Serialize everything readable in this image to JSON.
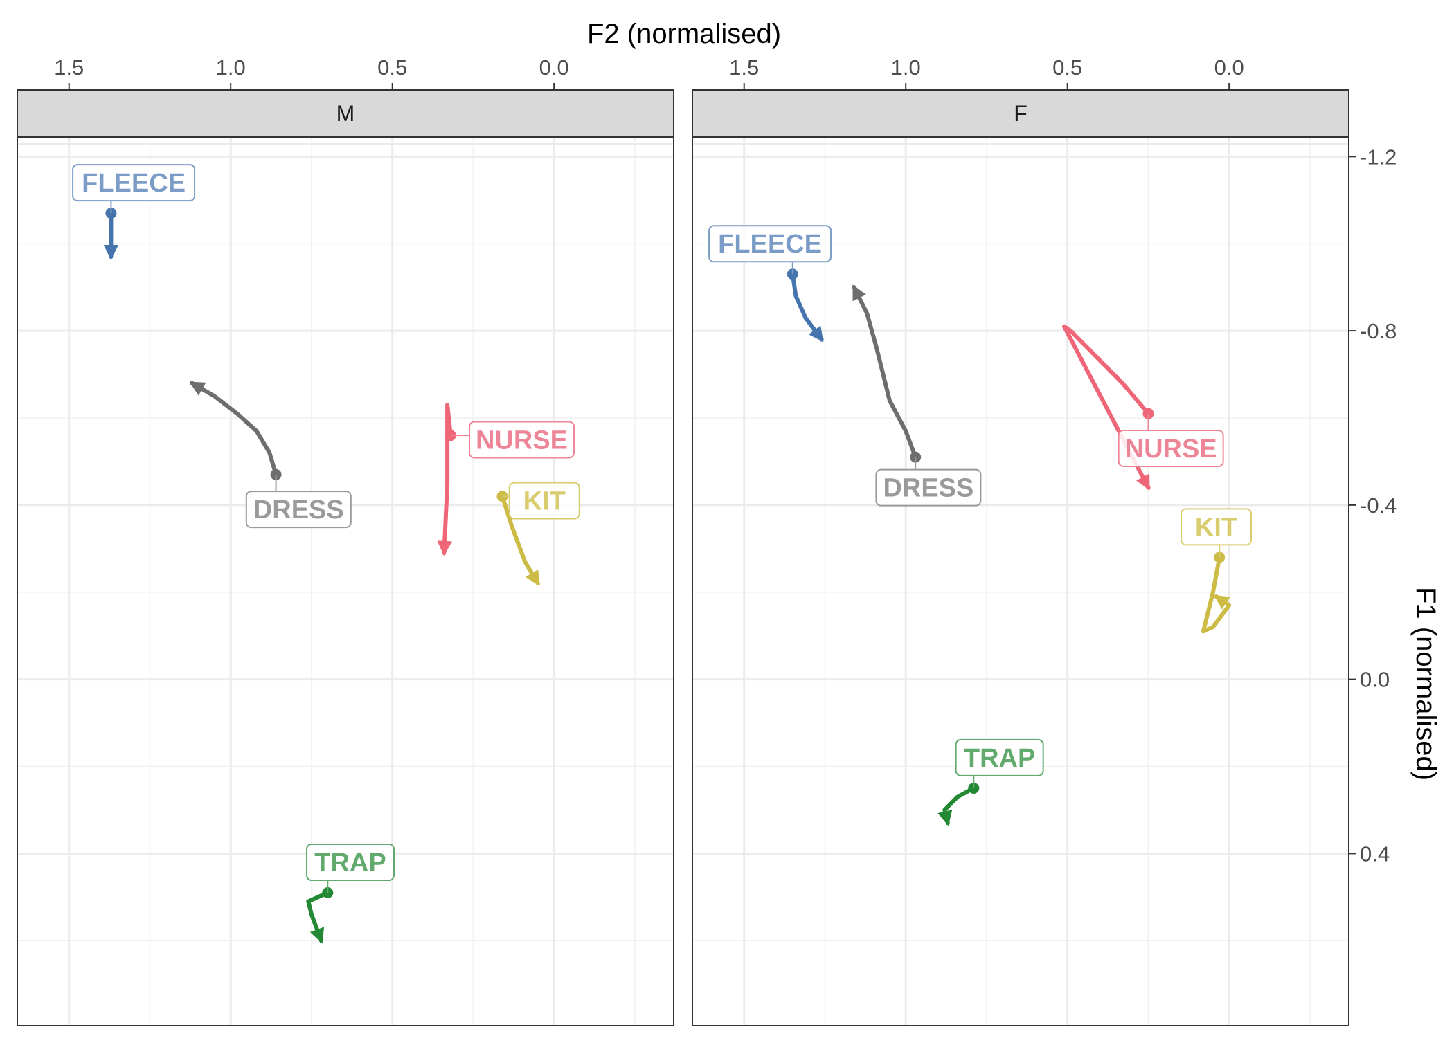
{
  "chart_data": {
    "type": "line",
    "xlabel": "F2 (normalised)",
    "ylabel": "F1 (normalised)",
    "x_axis": {
      "position": "top",
      "reversed": true,
      "lim": [
        1.66,
        -0.37
      ],
      "ticks": [
        1.5,
        1.0,
        0.5,
        0.0
      ],
      "tick_labels": [
        "1.5",
        "1.0",
        "0.5",
        "0.0"
      ]
    },
    "y_axis": {
      "position": "right",
      "reversed": true,
      "lim": [
        -1.245,
        0.795
      ],
      "ticks": [
        -1.2,
        -0.8,
        -0.4,
        0.0,
        0.4
      ],
      "tick_labels": [
        "-1.2",
        "-0.8",
        "-0.4",
        "0.0",
        "0.4"
      ]
    },
    "grid": true,
    "colors": {
      "FLEECE": "#4575ac",
      "DRESS": "#6e6e6e",
      "NURSE": "#ee6677",
      "KIT": "#ccbb44",
      "TRAP": "#228833"
    },
    "label_colors": {
      "FLEECE": "#7a9cc6",
      "DRESS": "#9a9a9a",
      "NURSE": "#ee8597",
      "KIT": "#d9cc6e",
      "TRAP": "#62a96e"
    },
    "panels": [
      {
        "facet": "M",
        "series": [
          {
            "name": "FLEECE",
            "points": [
              [
                1.37,
                -1.07
              ],
              [
                1.37,
                -0.97
              ]
            ],
            "label_at": [
              1.3,
              -1.14
            ]
          },
          {
            "name": "DRESS",
            "points": [
              [
                0.86,
                -0.47
              ],
              [
                0.88,
                -0.52
              ],
              [
                0.92,
                -0.57
              ],
              [
                0.98,
                -0.61
              ],
              [
                1.05,
                -0.65
              ],
              [
                1.12,
                -0.68
              ]
            ],
            "label_at": [
              0.79,
              -0.39
            ]
          },
          {
            "name": "NURSE",
            "points": [
              [
                0.32,
                -0.56
              ],
              [
                0.33,
                -0.63
              ],
              [
                0.33,
                -0.45
              ],
              [
                0.34,
                -0.29
              ]
            ],
            "label_at": [
              0.1,
              -0.55
            ]
          },
          {
            "name": "KIT",
            "points": [
              [
                0.16,
                -0.42
              ],
              [
                0.13,
                -0.35
              ],
              [
                0.09,
                -0.27
              ],
              [
                0.05,
                -0.22
              ]
            ],
            "label_at": [
              0.03,
              -0.41
            ]
          },
          {
            "name": "TRAP",
            "points": [
              [
                0.7,
                0.49
              ],
              [
                0.76,
                0.51
              ],
              [
                0.75,
                0.54
              ],
              [
                0.72,
                0.6
              ]
            ],
            "label_at": [
              0.63,
              0.42
            ]
          }
        ]
      },
      {
        "facet": "F",
        "series": [
          {
            "name": "FLEECE",
            "points": [
              [
                1.35,
                -0.93
              ],
              [
                1.34,
                -0.88
              ],
              [
                1.31,
                -0.83
              ],
              [
                1.26,
                -0.78
              ]
            ],
            "label_at": [
              1.42,
              -1.0
            ]
          },
          {
            "name": "DRESS",
            "points": [
              [
                0.97,
                -0.51
              ],
              [
                1.0,
                -0.57
              ],
              [
                1.05,
                -0.64
              ],
              [
                1.09,
                -0.76
              ],
              [
                1.12,
                -0.84
              ],
              [
                1.16,
                -0.9
              ]
            ],
            "label_at": [
              0.93,
              -0.44
            ]
          },
          {
            "name": "NURSE",
            "points": [
              [
                0.25,
                -0.61
              ],
              [
                0.33,
                -0.68
              ],
              [
                0.49,
                -0.8
              ],
              [
                0.51,
                -0.81
              ],
              [
                0.25,
                -0.44
              ]
            ],
            "label_at": [
              0.18,
              -0.53
            ]
          },
          {
            "name": "KIT",
            "points": [
              [
                0.03,
                -0.28
              ],
              [
                0.05,
                -0.2
              ],
              [
                0.08,
                -0.11
              ],
              [
                0.05,
                -0.12
              ],
              [
                0.0,
                -0.17
              ],
              [
                0.04,
                -0.19
              ]
            ],
            "label_at": [
              0.04,
              -0.35
            ]
          },
          {
            "name": "TRAP",
            "points": [
              [
                0.79,
                0.25
              ],
              [
                0.84,
                0.27
              ],
              [
                0.88,
                0.3
              ],
              [
                0.87,
                0.33
              ]
            ],
            "label_at": [
              0.71,
              0.18
            ]
          }
        ]
      }
    ]
  }
}
